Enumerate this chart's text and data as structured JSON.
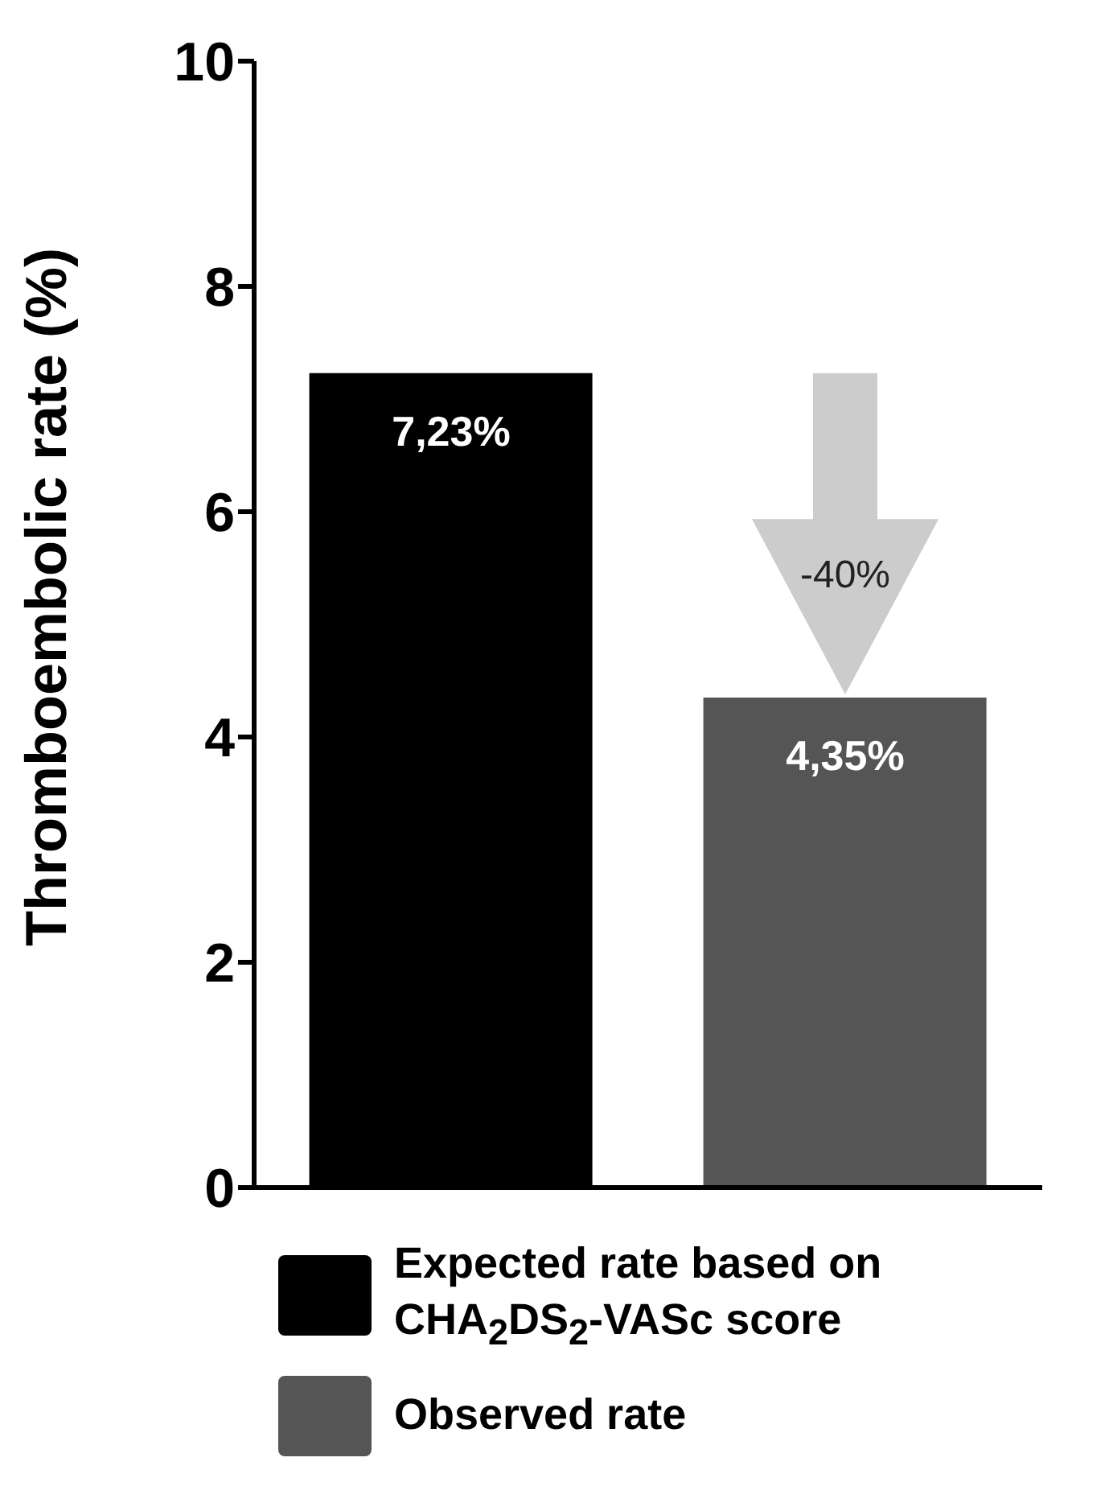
{
  "chart_data": {
    "type": "bar",
    "ylabel": "Thromboembolic rate (%)",
    "categories": [
      null,
      null
    ],
    "series": [
      {
        "name": "Expected rate based on CHA$_{2}$DS$_{2}$-VASc score",
        "color": "#000000",
        "values": [
          7.23,
          null
        ],
        "value_labels": [
          "7,23%",
          null
        ]
      },
      {
        "name": "Observed rate",
        "color": "#555555",
        "values": [
          null,
          4.35
        ],
        "value_labels": [
          null,
          "4,35%"
        ]
      }
    ],
    "ylim": [
      0,
      10
    ],
    "yticks": [
      0,
      2,
      4,
      6,
      8,
      10
    ],
    "tick_labels": "y",
    "legend": "bottom",
    "annotations": [
      "-40%"
    ]
  }
}
